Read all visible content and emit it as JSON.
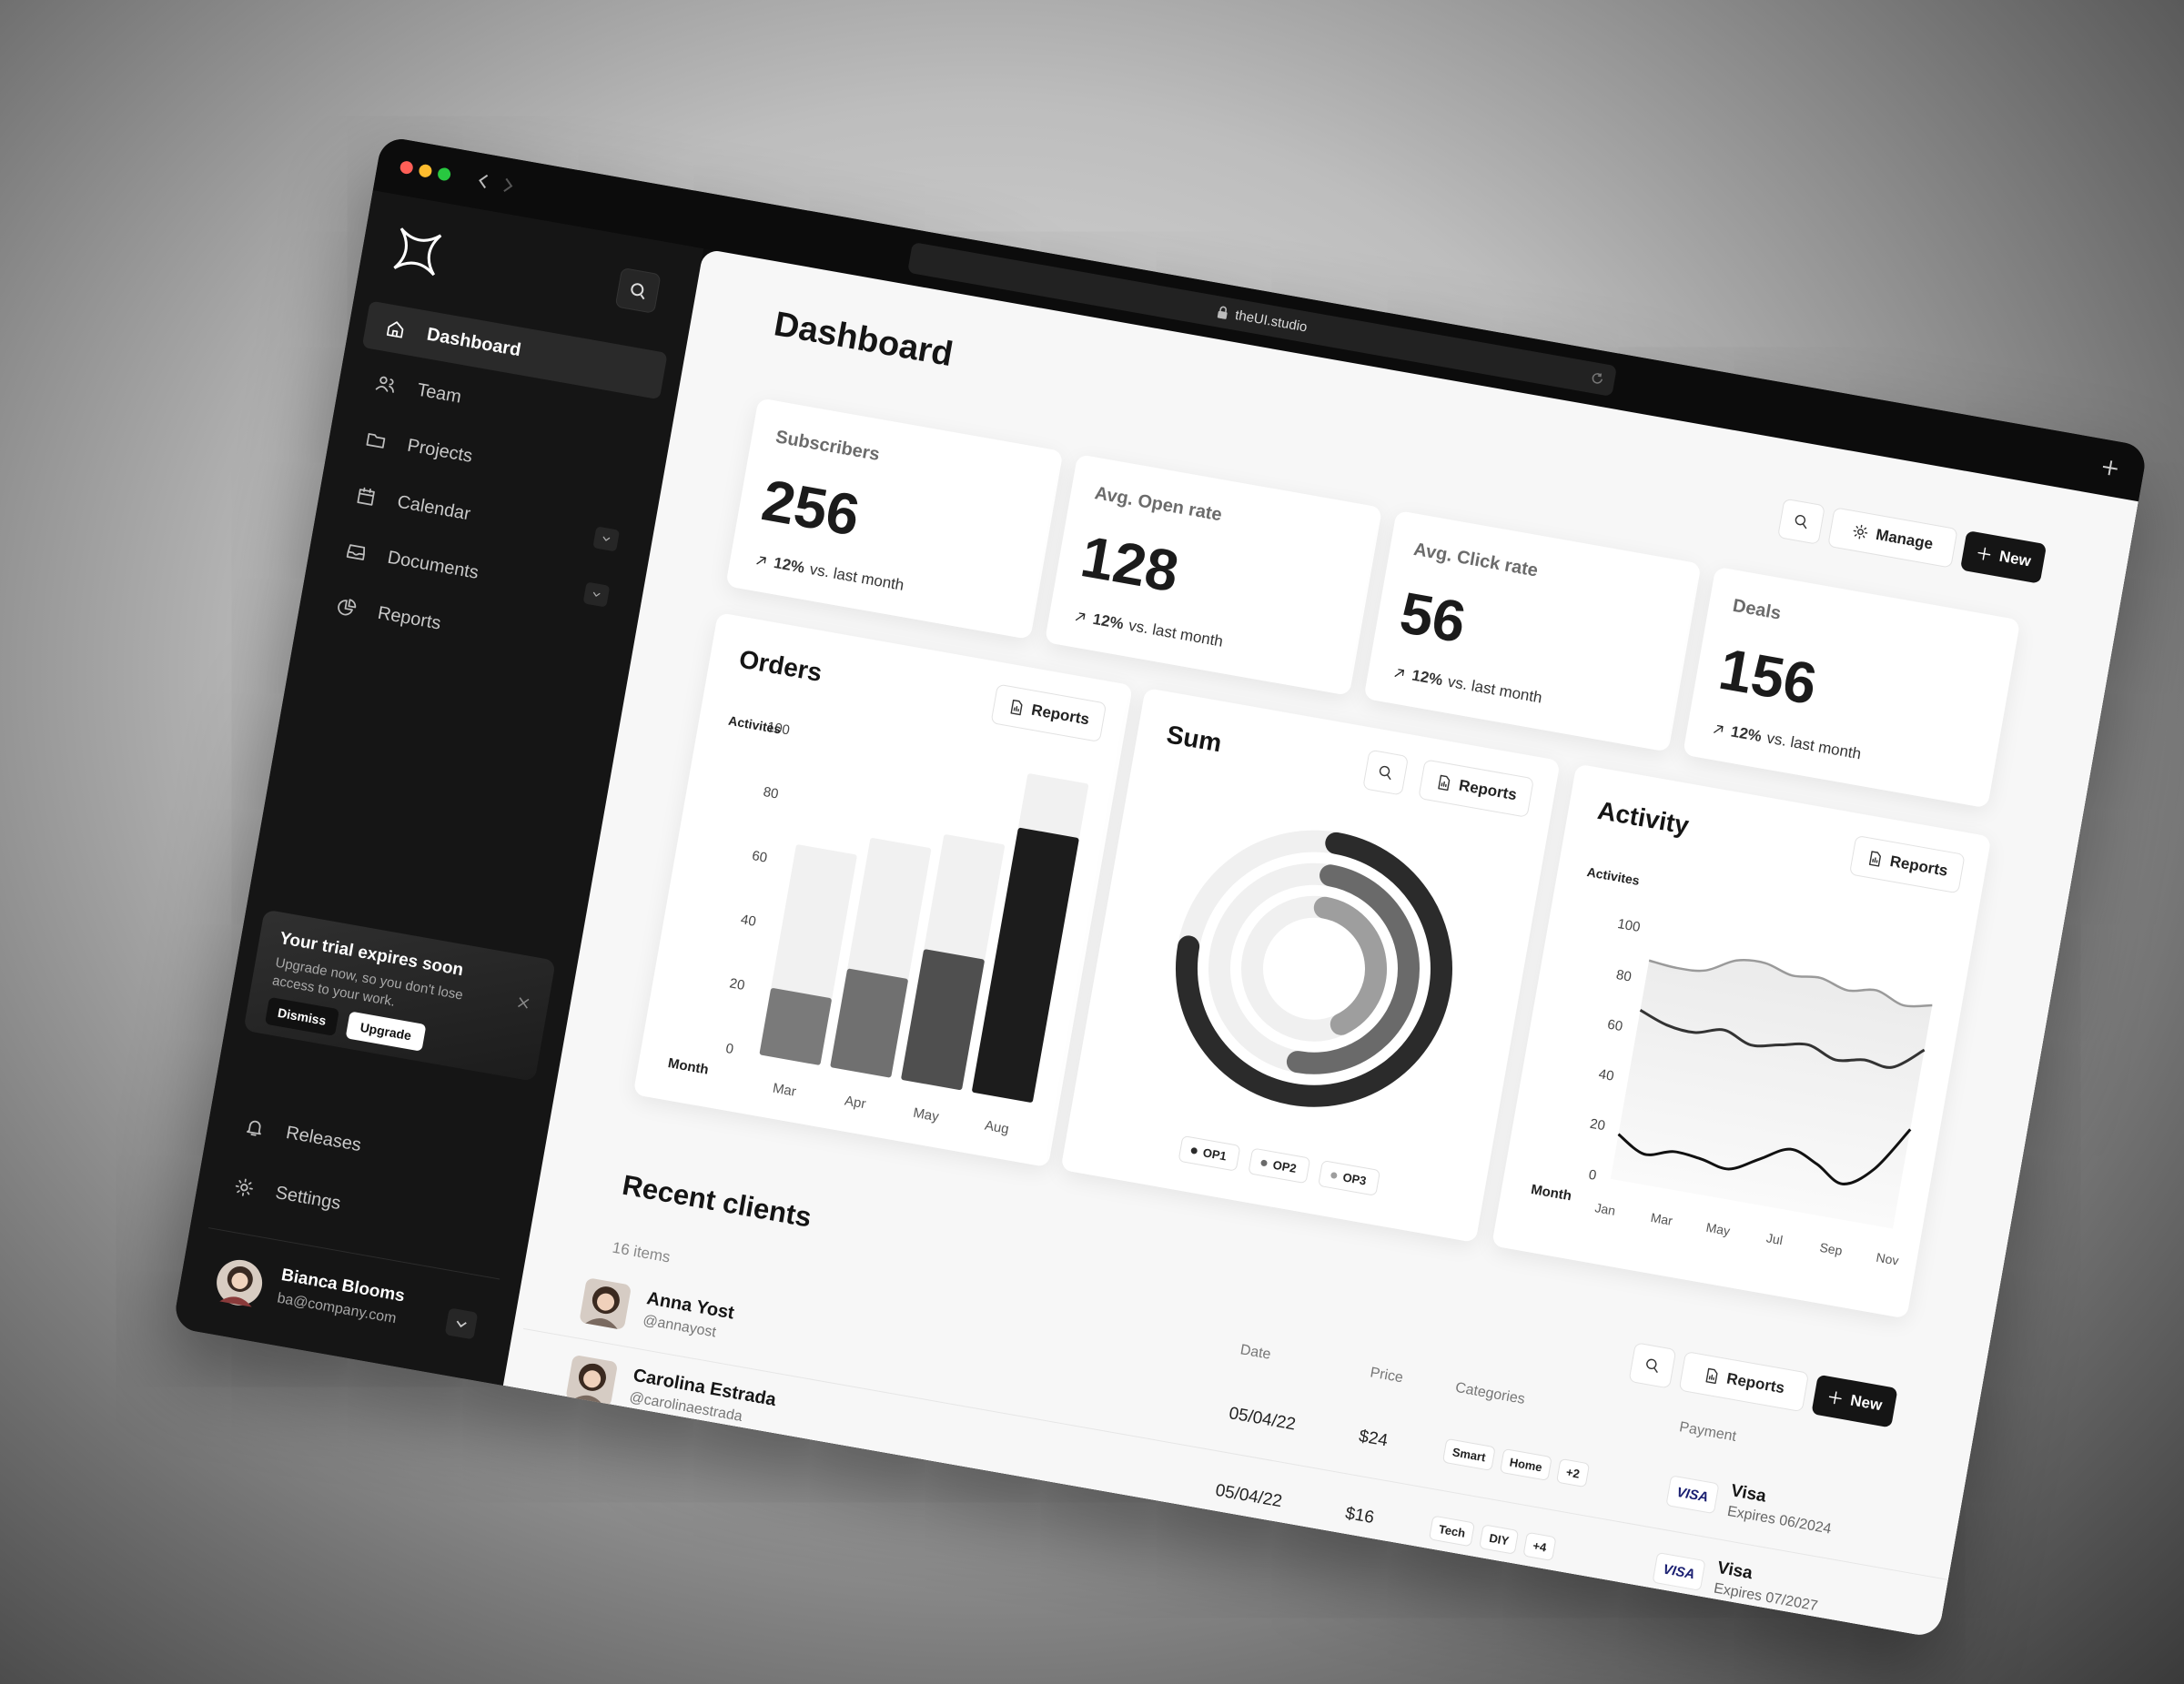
{
  "browser": {
    "url": "theUI.studio"
  },
  "sidebar": {
    "nav": [
      "Dashboard",
      "Team",
      "Projects",
      "Calendar",
      "Documents",
      "Reports"
    ],
    "trial": {
      "title": "Your trial expires soon",
      "text": "Upgrade now, so you don't lose access to your work.",
      "dismiss": "Dismiss",
      "upgrade": "Upgrade"
    },
    "footer_nav": [
      "Releases",
      "Settings"
    ],
    "user": {
      "name": "Bianca Blooms",
      "email": "ba@company.com"
    }
  },
  "header": {
    "title": "Dashboard",
    "manage": "Manage",
    "new": "New"
  },
  "labels": {
    "reports": "Reports"
  },
  "stats": [
    {
      "label": "Subscribers",
      "value": "256",
      "change": "12%",
      "note": "vs. last month"
    },
    {
      "label": "Avg. Open rate",
      "value": "128",
      "change": "12%",
      "note": "vs. last month"
    },
    {
      "label": "Avg. Click rate",
      "value": "56",
      "change": "12%",
      "note": "vs. last month"
    },
    {
      "label": "Deals",
      "value": "156",
      "change": "12%",
      "note": "vs. last month"
    }
  ],
  "chart_data": [
    {
      "type": "bar",
      "title": "Orders",
      "y_label": "Activites",
      "x_label": "Month",
      "categories": [
        "Mar",
        "Apr",
        "May",
        "Aug"
      ],
      "series": [
        {
          "color": "#f1f1f1",
          "values": [
            66,
            72,
            77,
            100
          ]
        },
        {
          "colors": [
            "#7a7a7a",
            "#707070",
            "#4f4f4f",
            "#1c1c1c"
          ],
          "values": [
            21,
            31,
            41,
            83
          ]
        }
      ],
      "ylim": [
        0,
        100
      ],
      "yticks": [
        0,
        20,
        40,
        60,
        80,
        100
      ]
    },
    {
      "type": "radial",
      "title": "Sum",
      "track_color": "#f0f0f0",
      "series": [
        {
          "name": "OP1",
          "color": "#2b2b2b",
          "value": 75
        },
        {
          "name": "OP2",
          "color": "#6a6a6a",
          "value": 50
        },
        {
          "name": "OP3",
          "color": "#9e9e9e",
          "value": 40
        }
      ],
      "ylim": [
        0,
        100
      ]
    },
    {
      "type": "line",
      "title": "Activity",
      "y_label": "Activites",
      "x_label": "Month",
      "area": true,
      "categories": [
        "Jan",
        null,
        "Mar",
        null,
        "May",
        null,
        "Jul",
        null,
        "Sep",
        null,
        "Nov"
      ],
      "series": [
        {
          "color": "#9a9a9a",
          "values": [
            88,
            87,
            88,
            94,
            95,
            92,
            93,
            90,
            92,
            88,
            90
          ]
        },
        {
          "color": "#333333",
          "values": [
            68,
            64,
            63,
            66,
            62,
            64,
            66,
            62,
            64,
            63,
            72
          ]
        },
        {
          "color": "#111111",
          "values": [
            18,
            12,
            15,
            14,
            12,
            18,
            24,
            20,
            14,
            22,
            40
          ]
        }
      ],
      "ylim": [
        0,
        100
      ],
      "yticks": [
        0,
        20,
        40,
        60,
        80,
        100
      ]
    }
  ],
  "clients": {
    "title": "Recent clients",
    "count": "16 items",
    "columns": [
      "Date",
      "Price",
      "Categories",
      "Payment"
    ],
    "rows": [
      {
        "name": "Anna Yost",
        "handle": "@annayost",
        "date": "05/04/22",
        "price": "$24",
        "categories": [
          "Smart",
          "Home",
          "+2"
        ],
        "card": "VISA",
        "payment": "Visa",
        "expires": "Expires 06/2024"
      },
      {
        "name": "Carolina Estrada",
        "handle": "@carolinaestrada",
        "date": "05/04/22",
        "price": "$16",
        "categories": [
          "Tech",
          "DIY",
          "+4"
        ],
        "card": "VISA",
        "payment": "Visa",
        "expires": "Expires 07/2027"
      }
    ]
  }
}
